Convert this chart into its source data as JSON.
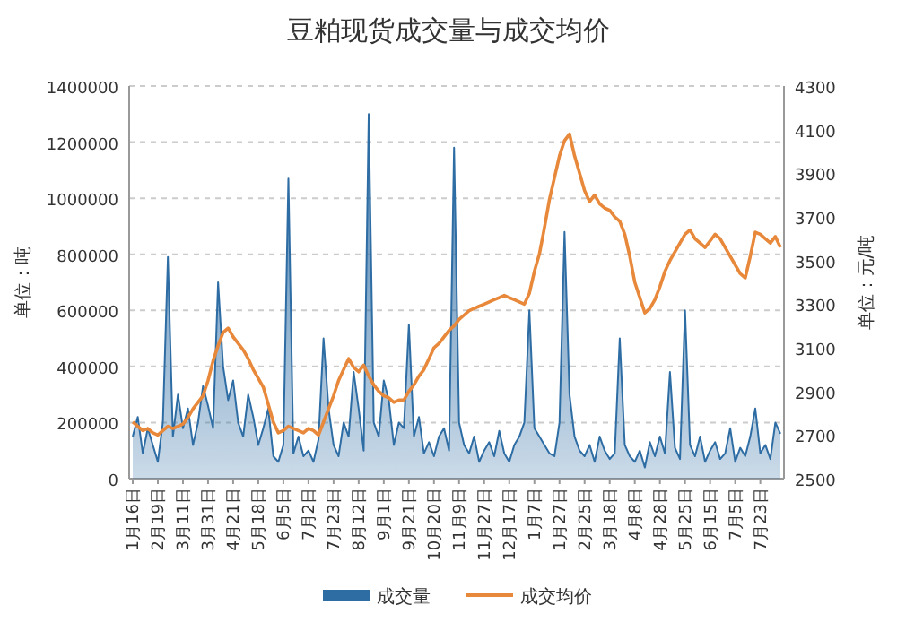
{
  "chart_data": {
    "type": "area",
    "title": "豆粕现货成交量与成交均价",
    "ylabel": "单位：吨",
    "y2label": "单位：元/吨",
    "categories": [
      "1月16日",
      null,
      null,
      null,
      null,
      "2月19日",
      null,
      null,
      null,
      null,
      "3月11日",
      null,
      null,
      null,
      null,
      "3月31日",
      null,
      null,
      null,
      null,
      "4月21日",
      null,
      null,
      null,
      null,
      "5月18日",
      null,
      null,
      null,
      null,
      "6月5日",
      null,
      null,
      null,
      null,
      "7月2日",
      null,
      null,
      null,
      null,
      "7月23日",
      null,
      null,
      null,
      null,
      "8月12日",
      null,
      null,
      null,
      null,
      "9月1日",
      null,
      null,
      null,
      null,
      "9月21日",
      null,
      null,
      null,
      null,
      "10月20日",
      null,
      null,
      null,
      null,
      "11月9日",
      null,
      null,
      null,
      null,
      "11月27日",
      null,
      null,
      null,
      null,
      "12月17日",
      null,
      null,
      null,
      null,
      "1月7日",
      null,
      null,
      null,
      null,
      "1月27日",
      null,
      null,
      null,
      null,
      "2月25日",
      null,
      null,
      null,
      null,
      "3月18日",
      null,
      null,
      null,
      null,
      "4月8日",
      null,
      null,
      null,
      null,
      "4月28日",
      null,
      null,
      null,
      null,
      "5月25日",
      null,
      null,
      null,
      null,
      "6月15日",
      null,
      null,
      null,
      null,
      "7月5日",
      null,
      null,
      null,
      null,
      "7月23日",
      null,
      null,
      null,
      null
    ],
    "series": [
      {
        "name": "成交量",
        "color": "#2e6da4",
        "values": [
          150000,
          220000,
          90000,
          180000,
          120000,
          60000,
          200000,
          790000,
          150000,
          300000,
          180000,
          250000,
          120000,
          200000,
          330000,
          260000,
          180000,
          700000,
          400000,
          280000,
          350000,
          200000,
          150000,
          300000,
          220000,
          120000,
          180000,
          250000,
          80000,
          60000,
          120000,
          1070000,
          90000,
          150000,
          80000,
          100000,
          60000,
          140000,
          500000,
          250000,
          120000,
          80000,
          200000,
          150000,
          380000,
          250000,
          100000,
          1300000,
          200000,
          150000,
          350000,
          280000,
          120000,
          200000,
          180000,
          550000,
          150000,
          220000,
          90000,
          130000,
          80000,
          150000,
          180000,
          100000,
          1180000,
          200000,
          120000,
          90000,
          150000,
          60000,
          100000,
          130000,
          80000,
          170000,
          90000,
          60000,
          120000,
          150000,
          200000,
          600000,
          180000,
          150000,
          120000,
          90000,
          80000,
          200000,
          880000,
          300000,
          150000,
          100000,
          80000,
          120000,
          60000,
          150000,
          100000,
          70000,
          90000,
          500000,
          120000,
          80000,
          60000,
          100000,
          40000,
          130000,
          80000,
          150000,
          90000,
          380000,
          110000,
          70000,
          600000,
          120000,
          80000,
          150000,
          60000,
          100000,
          130000,
          70000,
          90000,
          180000,
          60000,
          110000,
          80000,
          150000,
          250000,
          90000,
          120000,
          70000,
          200000,
          160000
        ]
      },
      {
        "name": "成交均价",
        "type": "line",
        "axis": "y2",
        "color": "#e8883a",
        "values": [
          2760,
          2740,
          2720,
          2730,
          2710,
          2700,
          2720,
          2740,
          2730,
          2740,
          2750,
          2780,
          2820,
          2850,
          2880,
          2950,
          3040,
          3110,
          3170,
          3190,
          3150,
          3120,
          3090,
          3050,
          3000,
          2960,
          2920,
          2840,
          2760,
          2710,
          2720,
          2740,
          2730,
          2720,
          2710,
          2730,
          2720,
          2700,
          2760,
          2820,
          2880,
          2950,
          3000,
          3050,
          3010,
          2990,
          3020,
          2970,
          2930,
          2900,
          2880,
          2870,
          2850,
          2860,
          2860,
          2900,
          2930,
          2970,
          3000,
          3050,
          3100,
          3120,
          3150,
          3180,
          3200,
          3230,
          3250,
          3270,
          3280,
          3290,
          3300,
          3310,
          3320,
          3330,
          3340,
          3330,
          3320,
          3310,
          3300,
          3350,
          3450,
          3530,
          3650,
          3780,
          3880,
          3980,
          4050,
          4080,
          3980,
          3900,
          3820,
          3770,
          3800,
          3760,
          3740,
          3730,
          3700,
          3680,
          3620,
          3520,
          3400,
          3330,
          3260,
          3280,
          3320,
          3380,
          3450,
          3500,
          3540,
          3580,
          3620,
          3640,
          3600,
          3580,
          3560,
          3590,
          3620,
          3600,
          3560,
          3520,
          3480,
          3440,
          3420,
          3520,
          3630,
          3620,
          3600,
          3580,
          3610,
          3560
        ]
      }
    ],
    "ylim": [
      0,
      1400000
    ],
    "yticks": [
      0,
      200000,
      400000,
      600000,
      800000,
      1000000,
      1200000,
      1400000
    ],
    "y2lim": [
      2500,
      4300
    ],
    "y2ticks": [
      2500,
      2700,
      2900,
      3100,
      3300,
      3500,
      3700,
      3900,
      4100,
      4300
    ],
    "grid": "y",
    "legend": "bottom",
    "line_style": "solid",
    "marker": "none"
  }
}
